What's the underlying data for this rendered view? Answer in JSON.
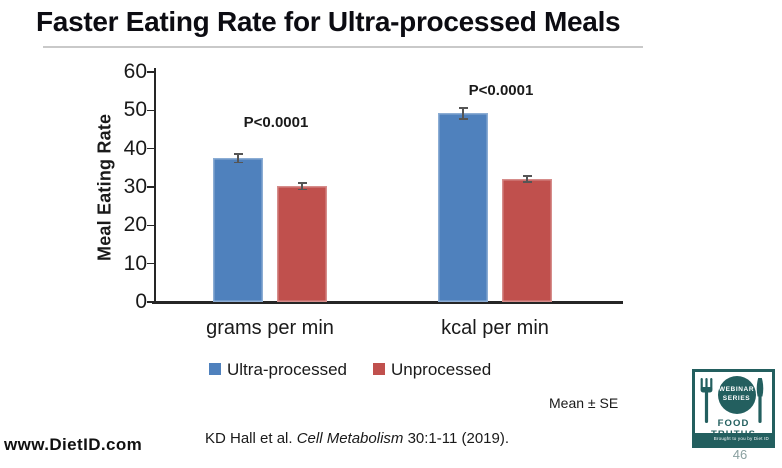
{
  "slide": {
    "title": "Faster Eating Rate for Ultra-processed Meals",
    "note": "Mean ± SE",
    "footer_url": "www.DietID.com",
    "citation_prefix": "KD Hall et al. ",
    "citation_journal": "Cell Metabolism",
    "citation_suffix": " 30:1-11 (2019).",
    "page_number": "46"
  },
  "logo": {
    "webinar_line1": "WEBINAR",
    "webinar_line2": "SERIES",
    "title": "FOOD TRUTHS",
    "tagline": "Brought to you by Diet ID",
    "teal": "#235f5f"
  },
  "chart_data": {
    "type": "bar",
    "title": "",
    "xlabel": "",
    "ylabel": "Meal Eating Rate",
    "ylim": [
      0,
      60
    ],
    "yticks": [
      0,
      10,
      20,
      30,
      40,
      50,
      60
    ],
    "grid": false,
    "legend_position": "bottom",
    "categories": [
      "grams per min",
      "kcal per min"
    ],
    "series": [
      {
        "name": "Ultra-processed",
        "color": "#4F81BD",
        "values": [
          37.5,
          49.2
        ],
        "errors": [
          1.1,
          1.4
        ]
      },
      {
        "name": "Unprocessed",
        "color": "#C0504D",
        "values": [
          30.2,
          32.1
        ],
        "errors": [
          0.9,
          0.8
        ]
      }
    ],
    "annotations": [
      "P<0.0001",
      "P<0.0001"
    ],
    "error_note": "Mean ± SE",
    "axis_color": "#262626",
    "error_bar_color": "#555555"
  }
}
